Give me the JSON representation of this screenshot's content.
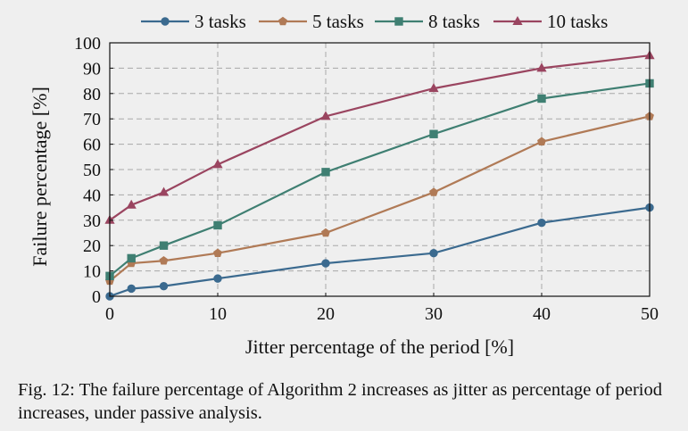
{
  "caption": {
    "label": "Fig. 12:",
    "text": "The failure percentage of Algorithm 2 increases as jitter as percentage of period increases, under passive analysis."
  },
  "chart_data": {
    "type": "line",
    "title": "",
    "xlabel": "Jitter percentage of the period [%]",
    "ylabel": "Failure percentage [%]",
    "xlim": [
      0,
      50
    ],
    "ylim": [
      0,
      100
    ],
    "xticks": [
      0,
      10,
      20,
      30,
      40,
      50
    ],
    "yticks": [
      0,
      10,
      20,
      30,
      40,
      50,
      60,
      70,
      80,
      90,
      100
    ],
    "grid": "dashed",
    "legend_position": "top",
    "x": [
      0,
      2,
      5,
      10,
      20,
      30,
      40,
      50
    ],
    "series": [
      {
        "name": "3 tasks",
        "color": "#3b6a8f",
        "marker": "circle",
        "values": [
          0,
          3,
          4,
          7,
          13,
          17,
          29,
          35
        ]
      },
      {
        "name": "5 tasks",
        "color": "#b07a56",
        "marker": "pentagon",
        "values": [
          6,
          13,
          14,
          17,
          25,
          41,
          61,
          71
        ]
      },
      {
        "name": "8 tasks",
        "color": "#3f7f72",
        "marker": "square",
        "values": [
          8,
          15,
          20,
          28,
          49,
          64,
          78,
          84
        ]
      },
      {
        "name": "10 tasks",
        "color": "#9a4560",
        "marker": "triangle",
        "values": [
          30,
          36,
          41,
          52,
          71,
          82,
          90,
          95
        ]
      }
    ]
  }
}
